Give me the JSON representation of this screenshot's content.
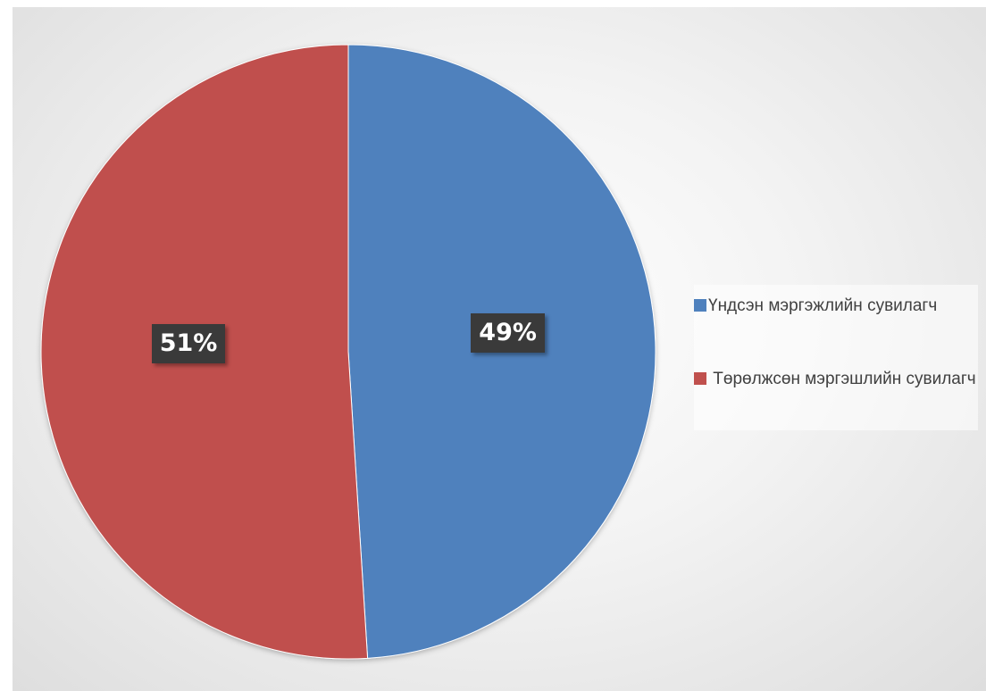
{
  "chart_data": {
    "type": "pie",
    "series": [
      {
        "slices": [
          {
            "label": "Үндсэн мэргэжлийн сувилагч",
            "value": 49,
            "data_label": "49%",
            "color": "#4f81bd"
          },
          {
            "label": " Төрөлжсөн мэргэшлийн сувилагч",
            "value": 51,
            "data_label": "51%",
            "color": "#c0504d"
          }
        ]
      }
    ],
    "title": "",
    "legend_position": "right",
    "start_angle_deg": 0,
    "direction": "clockwise"
  }
}
